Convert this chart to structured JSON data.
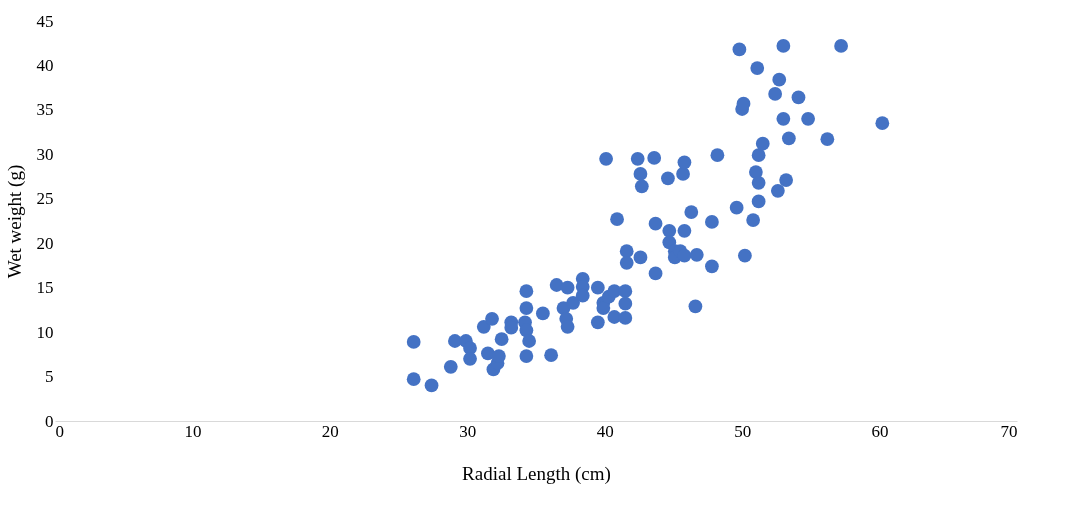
{
  "chart_data": {
    "type": "scatter",
    "xlabel": "Radial Length (cm)",
    "ylabel": "Wet  weight (g)",
    "xlim": [
      0,
      70
    ],
    "xticks": [
      0,
      10,
      20,
      30,
      40,
      50,
      60,
      70
    ],
    "ylim": [
      0,
      45
    ],
    "yticks": [
      0,
      5,
      10,
      15,
      20,
      25,
      30,
      35,
      40,
      45
    ],
    "grid": false,
    "marker": "circle",
    "series": [
      {
        "color": "#4472c4",
        "x": [
          26.1,
          27.4,
          26.1,
          28.8,
          29.1,
          29.9,
          30.2,
          30.2,
          31.2,
          31.8,
          31.5,
          31.9,
          32.2,
          32.3,
          32.5,
          33.2,
          33.2,
          34.2,
          34.3,
          34.5,
          34.3,
          34.3,
          34.3,
          35.5,
          36.1,
          36.5,
          37.0,
          37.3,
          37.2,
          37.3,
          37.7,
          38.4,
          38.4,
          38.4,
          39.5,
          39.5,
          39.9,
          39.9,
          40.3,
          40.7,
          40.7,
          40.1,
          40.9,
          41.6,
          41.6,
          41.5,
          41.5,
          41.5,
          42.4,
          42.6,
          42.7,
          42.6,
          43.6,
          43.7,
          43.7,
          44.6,
          44.7,
          44.7,
          45.1,
          45.1,
          45.5,
          45.8,
          45.7,
          45.8,
          45.8,
          46.3,
          46.7,
          46.6,
          47.8,
          47.8,
          48.2,
          49.8,
          49.6,
          50.0,
          50.1,
          50.2,
          50.8,
          51.1,
          51.0,
          51.2,
          51.2,
          51.2,
          51.5,
          52.4,
          52.7,
          52.6,
          53.0,
          53.0,
          53.2,
          53.4,
          54.1,
          54.8,
          56.2,
          57.2,
          60.2
        ],
        "values": [
          4.7,
          4.0,
          8.9,
          6.1,
          9.0,
          9.0,
          8.2,
          7.0,
          10.6,
          11.5,
          7.6,
          5.8,
          6.5,
          7.3,
          9.2,
          11.1,
          10.5,
          11.1,
          10.2,
          9.0,
          7.3,
          14.6,
          12.7,
          12.1,
          7.4,
          15.3,
          12.7,
          15.0,
          11.5,
          10.6,
          13.3,
          16.0,
          15.1,
          14.1,
          15.0,
          11.1,
          13.3,
          12.7,
          14.0,
          14.6,
          11.7,
          29.5,
          22.7,
          19.1,
          17.8,
          14.6,
          13.2,
          11.6,
          29.5,
          27.8,
          26.4,
          18.4,
          29.6,
          22.2,
          16.6,
          27.3,
          21.4,
          20.1,
          19.1,
          18.4,
          19.1,
          18.6,
          27.8,
          29.1,
          21.4,
          23.5,
          18.7,
          12.9,
          17.4,
          22.4,
          29.9,
          41.8,
          24.0,
          35.1,
          35.7,
          18.6,
          22.6,
          39.7,
          28.0,
          29.9,
          26.8,
          24.7,
          31.2,
          36.8,
          38.4,
          25.9,
          42.2,
          34.0,
          27.1,
          31.8,
          36.4,
          34.0,
          31.7,
          42.2,
          33.5
        ]
      }
    ]
  }
}
